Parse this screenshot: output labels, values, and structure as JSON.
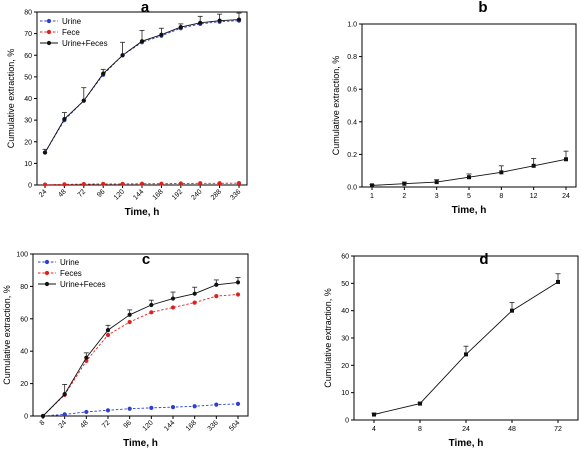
{
  "chart_data": [
    {
      "panel": "a",
      "type": "line",
      "xlabel": "Time, h",
      "ylabel": "Cumulative extraction, %",
      "categories": [
        "24",
        "48",
        "72",
        "96",
        "120",
        "144",
        "168",
        "192",
        "240",
        "288",
        "336"
      ],
      "ylim": [
        0,
        80
      ],
      "yticks": [
        0,
        10,
        20,
        30,
        40,
        50,
        60,
        70,
        80
      ],
      "legend_position": "top-left",
      "series": [
        {
          "name": "Urine",
          "color": "#2b3fd0",
          "dash": true,
          "values": [
            15,
            30,
            39,
            51,
            60,
            66,
            69,
            72.5,
            74.5,
            75.5,
            76
          ]
        },
        {
          "name": "Fece",
          "color": "#e02020",
          "dash": true,
          "values": [
            0.2,
            0.3,
            0.4,
            0.5,
            0.5,
            0.6,
            0.6,
            0.7,
            0.8,
            0.8,
            0.9
          ]
        },
        {
          "name": "Urine+Feces",
          "color": "#111111",
          "dash": false,
          "values": [
            15,
            30.5,
            39,
            51.5,
            60,
            66.5,
            69.5,
            73,
            75,
            76,
            76.5
          ],
          "errors": [
            1.5,
            3,
            6,
            2,
            6,
            5,
            3,
            1.5,
            3,
            3,
            3
          ]
        }
      ]
    },
    {
      "panel": "b",
      "type": "line",
      "xlabel": "Time, h",
      "ylabel": "Cumulative extraction, %",
      "categories": [
        "1",
        "2",
        "3",
        "5",
        "8",
        "12",
        "24"
      ],
      "ylim": [
        0,
        1.0
      ],
      "yticks": [
        "0.0",
        "0.2",
        "0.4",
        "0.6",
        "0.8",
        "1.0"
      ],
      "series": [
        {
          "name": "",
          "color": "#111111",
          "dash": false,
          "values": [
            0.01,
            0.02,
            0.03,
            0.06,
            0.09,
            0.13,
            0.17
          ],
          "errors": [
            0.005,
            0.01,
            0.015,
            0.02,
            0.04,
            0.045,
            0.05
          ]
        }
      ]
    },
    {
      "panel": "c",
      "type": "line",
      "xlabel": "Time, h",
      "ylabel": "Cumulative extraction, %",
      "categories": [
        "8",
        "24",
        "48",
        "72",
        "96",
        "120",
        "144",
        "168",
        "336",
        "504"
      ],
      "ylim": [
        0,
        100
      ],
      "yticks": [
        0,
        20,
        40,
        60,
        80,
        100
      ],
      "legend_position": "top-left",
      "series": [
        {
          "name": "Urine",
          "color": "#2b3fd0",
          "dash": true,
          "values": [
            0,
            1,
            2.5,
            3.5,
            4.5,
            5,
            5.5,
            6,
            7,
            7.5
          ]
        },
        {
          "name": "Feces",
          "color": "#e02020",
          "dash": true,
          "values": [
            0,
            13,
            34,
            50,
            58,
            64,
            67,
            70,
            74,
            75
          ]
        },
        {
          "name": "Urine+Feces",
          "color": "#111111",
          "dash": false,
          "values": [
            0,
            13.5,
            36,
            53,
            62.5,
            68.5,
            72.5,
            75.5,
            81,
            82.5
          ],
          "errors": [
            0,
            6,
            3,
            3,
            3,
            3,
            4,
            4,
            3,
            3
          ]
        }
      ]
    },
    {
      "panel": "d",
      "type": "line",
      "xlabel": "Time, h",
      "ylabel": "Cumulative extraction, %",
      "categories": [
        "4",
        "8",
        "24",
        "48",
        "72"
      ],
      "ylim": [
        0,
        60
      ],
      "yticks": [
        0,
        10,
        20,
        30,
        40,
        50,
        60
      ],
      "series": [
        {
          "name": "",
          "color": "#111111",
          "dash": false,
          "values": [
            2,
            6,
            24,
            40,
            50.5
          ],
          "errors": [
            0.5,
            0.5,
            3,
            3,
            3
          ]
        }
      ]
    }
  ]
}
